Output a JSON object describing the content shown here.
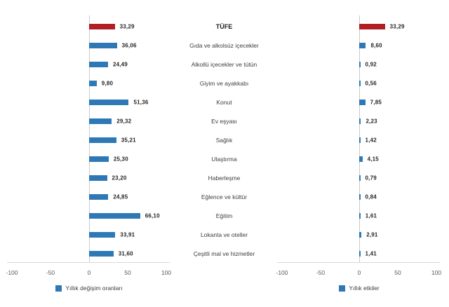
{
  "colors": {
    "bar_blue": "#2e79b5",
    "bar_red": "#b11e24",
    "zero_line": "#c9c9c9",
    "axis_line": "#d9d9d9",
    "value_label": "#262626",
    "category_label": "#3d3d3d",
    "tick_label": "#595959",
    "background": "#ffffff"
  },
  "chart_data": {
    "type": "bar",
    "orientation": "horizontal",
    "layout": "two mirrored panels with shared centered category labels, value labels at bar ends, legend below each panel",
    "grid": "off",
    "xlim": [
      -100,
      100
    ],
    "xticks": [
      -100,
      -50,
      0,
      50,
      100
    ],
    "highlight_category": "TÜFE",
    "categories": [
      "TÜFE",
      "Gıda ve alkolsüz içecekler",
      "Alkollü içecekler ve tütün",
      "Giyim ve ayakkabı",
      "Konut",
      "Ev eşyası",
      "Sağlık",
      "Ulaştırma",
      "Haberleşme",
      "Eğlence ve kültür",
      "Eğitim",
      "Lokanta ve oteller",
      "Çeşitli mal ve hizmetler"
    ],
    "series": [
      {
        "name": "Yıllık değişim oranları",
        "values": [
          33.29,
          36.06,
          24.49,
          9.8,
          51.36,
          29.32,
          35.21,
          25.3,
          23.2,
          24.85,
          66.1,
          33.91,
          31.6
        ],
        "labels": [
          "33,29",
          "36,06",
          "24,49",
          "9,80",
          "51,36",
          "29,32",
          "35,21",
          "25,30",
          "23,20",
          "24,85",
          "66,10",
          "33,91",
          "31,60"
        ]
      },
      {
        "name": "Yıllık etkiler",
        "values": [
          33.29,
          8.6,
          0.92,
          0.56,
          7.85,
          2.23,
          1.42,
          4.15,
          0.79,
          0.84,
          1.61,
          2.91,
          1.41
        ],
        "labels": [
          "33,29",
          "8,60",
          "0,92",
          "0,56",
          "7,85",
          "2,23",
          "1,42",
          "4,15",
          "0,79",
          "0,84",
          "1,61",
          "2,91",
          "1,41"
        ]
      }
    ]
  }
}
